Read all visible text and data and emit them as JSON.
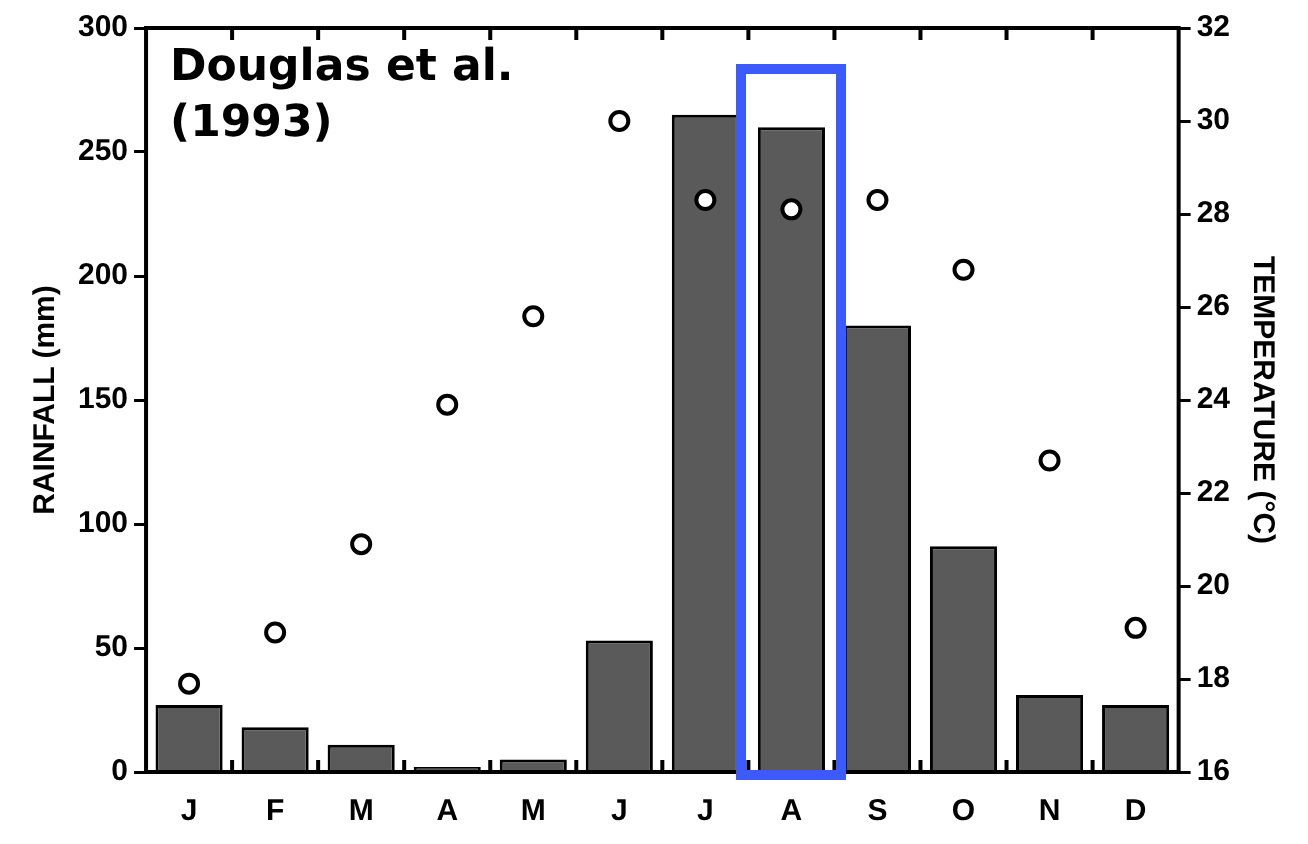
{
  "chart_data": {
    "type": "bar",
    "categories": [
      "J",
      "F",
      "M",
      "A",
      "M",
      "J",
      "J",
      "A",
      "S",
      "O",
      "N",
      "D"
    ],
    "ylabel": "RAINFALL (mm)",
    "y2label": "TEMPERATURE (°C)",
    "ylim": [
      0,
      300
    ],
    "yticks": [
      0,
      50,
      100,
      150,
      200,
      250,
      300
    ],
    "y2lim": [
      16,
      32
    ],
    "y2ticks": [
      16,
      18,
      20,
      22,
      24,
      26,
      28,
      30,
      32
    ],
    "annotations": [
      "Douglas et al. (1993)"
    ],
    "grid": false,
    "legend": false,
    "series": [
      {
        "color": "#5a5a5a",
        "values": [
          27,
          18,
          11,
          2,
          5,
          53,
          265,
          260,
          180,
          91,
          31,
          27
        ]
      },
      {
        "type": "scatter",
        "axis": "y2",
        "marker": "circle",
        "color": "#000000",
        "values": [
          17.9,
          19.0,
          20.9,
          23.9,
          25.8,
          30.0,
          28.3,
          28.1,
          28.3,
          26.8,
          22.7,
          19.1
        ]
      }
    ]
  }
}
